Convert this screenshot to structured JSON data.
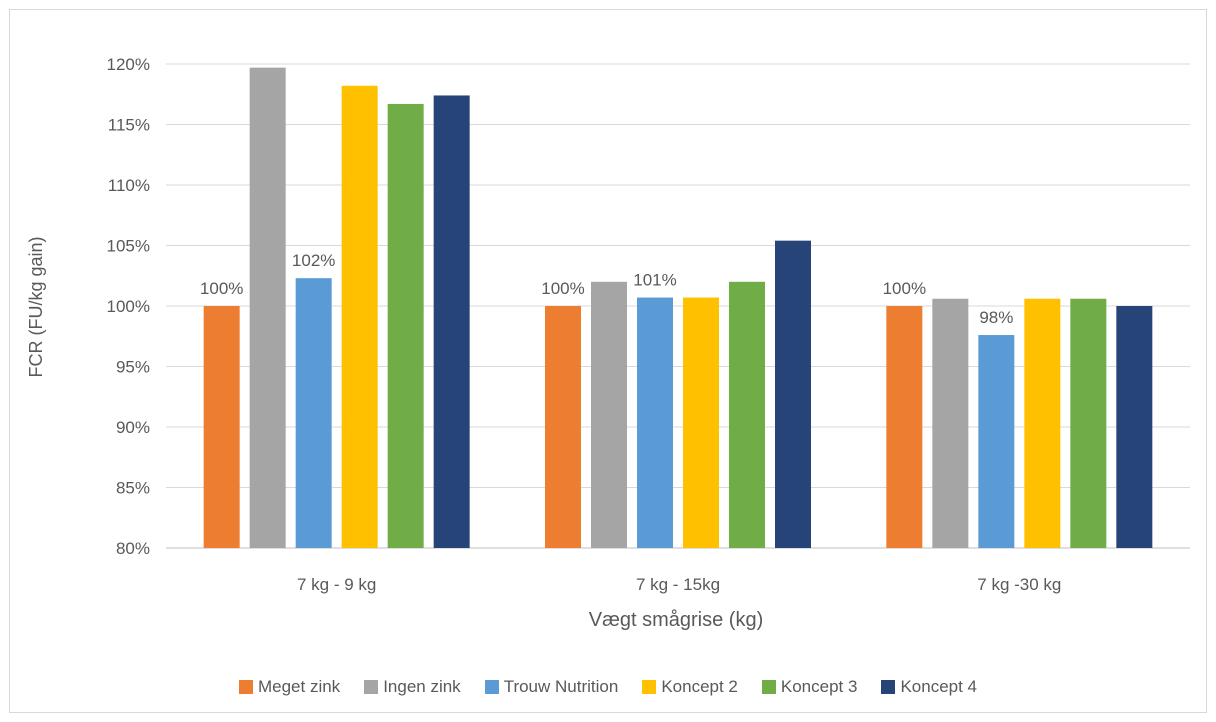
{
  "chart_data": {
    "type": "bar",
    "title": "",
    "xlabel": "Vægt smågrise (kg)",
    "ylabel": "FCR (FU/kg gain)",
    "ylim": [
      80,
      120
    ],
    "yticks": [
      "80%",
      "85%",
      "90%",
      "95%",
      "100%",
      "105%",
      "110%",
      "115%",
      "120%"
    ],
    "categories": [
      "7 kg - 9 kg",
      "7 kg - 15kg",
      "7 kg -30 kg"
    ],
    "series": [
      {
        "name": "Meget zink",
        "color": "#ed7d31",
        "values": [
          100,
          100,
          100
        ],
        "labels": [
          "100%",
          "100%",
          "100%"
        ]
      },
      {
        "name": "Ingen zink",
        "color": "#a5a5a5",
        "values": [
          119.7,
          102.0,
          100.6
        ],
        "labels": [
          "",
          "",
          ""
        ]
      },
      {
        "name": "Trouw Nutrition",
        "color": "#5b9bd5",
        "values": [
          102.3,
          100.7,
          97.6
        ],
        "labels": [
          "102%",
          "101%",
          "98%"
        ]
      },
      {
        "name": "Koncept 2",
        "color": "#ffc000",
        "values": [
          118.2,
          100.7,
          100.6
        ],
        "labels": [
          "",
          "",
          ""
        ]
      },
      {
        "name": "Koncept 3",
        "color": "#70ad47",
        "values": [
          116.7,
          102.0,
          100.6
        ],
        "labels": [
          "",
          "",
          ""
        ]
      },
      {
        "name": "Koncept 4",
        "color": "#264478",
        "values": [
          117.4,
          105.4,
          100.0
        ],
        "labels": [
          "",
          "",
          ""
        ]
      }
    ],
    "grid": true,
    "legend": "bottom"
  }
}
